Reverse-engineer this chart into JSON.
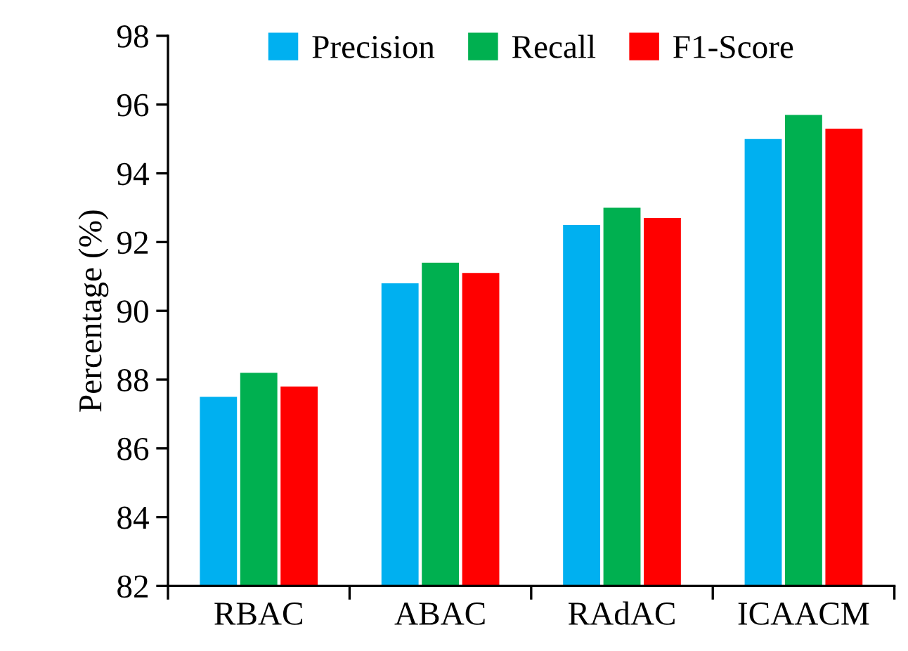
{
  "chart_data": {
    "type": "bar",
    "ylabel": "Percentage (%)",
    "categories": [
      "RBAC",
      "ABAC",
      "RAdAC",
      "ICAACM"
    ],
    "series": [
      {
        "name": "Precision",
        "color": "#00b0f0",
        "values": [
          87.5,
          90.8,
          92.5,
          95.0
        ]
      },
      {
        "name": "Recall",
        "color": "#00b050",
        "values": [
          88.2,
          91.4,
          93.0,
          95.7
        ]
      },
      {
        "name": "F1-Score",
        "color": "#ff0000",
        "values": [
          87.8,
          91.1,
          92.7,
          95.3
        ]
      }
    ],
    "ylim": [
      82,
      98
    ],
    "yticks": [
      82,
      84,
      86,
      88,
      90,
      92,
      94,
      96,
      98
    ],
    "grid": false,
    "legend": "top"
  }
}
